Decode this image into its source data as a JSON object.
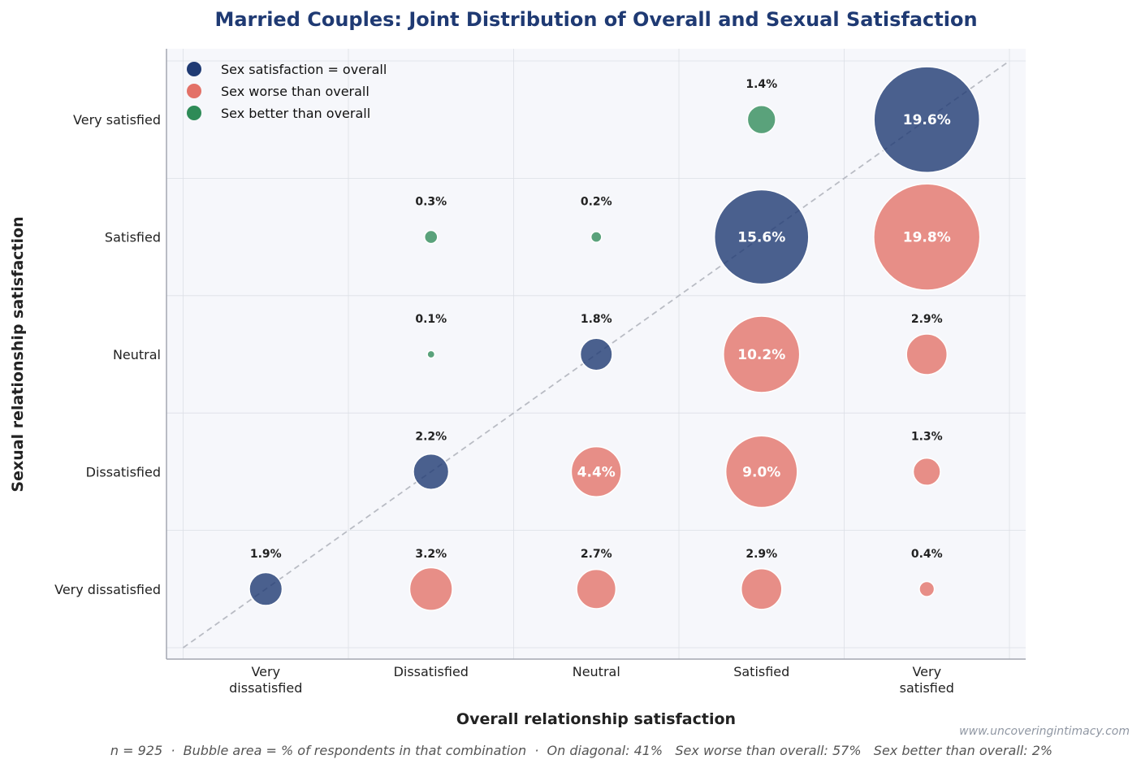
{
  "colors": {
    "equal": "#1f3a73",
    "worse": "#e37167",
    "better": "#2e8b57",
    "title": "#1f3a73",
    "plot_bg": "#f6f7fb",
    "grid": "#dcdfe6",
    "diagonal": "#b9bcc4"
  },
  "chart_data": {
    "type": "scatter",
    "title": "Married Couples: Joint Distribution of Overall and Sexual Satisfaction",
    "xlabel": "Overall relationship satisfaction",
    "ylabel": "Sexual relationship satisfaction",
    "x_categories": [
      "Very dissatisfied",
      "Dissatisfied",
      "Neutral",
      "Satisfied",
      "Very satisfied"
    ],
    "x_tick_labels": [
      [
        "Very",
        "dissatisfied"
      ],
      [
        "Dissatisfied"
      ],
      [
        "Neutral"
      ],
      [
        "Satisfied"
      ],
      [
        "Very",
        "satisfied"
      ]
    ],
    "y_categories": [
      "Very dissatisfied",
      "Dissatisfied",
      "Neutral",
      "Satisfied",
      "Very satisfied"
    ],
    "grid": true,
    "legend_position": "top-left",
    "legend": [
      {
        "key": "equal",
        "label": "Sex satisfaction = overall"
      },
      {
        "key": "worse",
        "label": "Sex worse than overall"
      },
      {
        "key": "better",
        "label": "Sex better than overall"
      }
    ],
    "points": [
      {
        "x": "Very dissatisfied",
        "y": "Very dissatisfied",
        "value": 1.9,
        "label": "1.9%",
        "group": "equal"
      },
      {
        "x": "Dissatisfied",
        "y": "Very dissatisfied",
        "value": 3.2,
        "label": "3.2%",
        "group": "worse"
      },
      {
        "x": "Neutral",
        "y": "Very dissatisfied",
        "value": 2.7,
        "label": "2.7%",
        "group": "worse"
      },
      {
        "x": "Satisfied",
        "y": "Very dissatisfied",
        "value": 2.9,
        "label": "2.9%",
        "group": "worse"
      },
      {
        "x": "Very satisfied",
        "y": "Very dissatisfied",
        "value": 0.4,
        "label": "0.4%",
        "group": "worse"
      },
      {
        "x": "Dissatisfied",
        "y": "Dissatisfied",
        "value": 2.2,
        "label": "2.2%",
        "group": "equal"
      },
      {
        "x": "Neutral",
        "y": "Dissatisfied",
        "value": 4.4,
        "label": "4.4%",
        "group": "worse"
      },
      {
        "x": "Satisfied",
        "y": "Dissatisfied",
        "value": 9.0,
        "label": "9.0%",
        "group": "worse"
      },
      {
        "x": "Very satisfied",
        "y": "Dissatisfied",
        "value": 1.3,
        "label": "1.3%",
        "group": "worse"
      },
      {
        "x": "Dissatisfied",
        "y": "Neutral",
        "value": 0.1,
        "label": "0.1%",
        "group": "better"
      },
      {
        "x": "Neutral",
        "y": "Neutral",
        "value": 1.8,
        "label": "1.8%",
        "group": "equal"
      },
      {
        "x": "Satisfied",
        "y": "Neutral",
        "value": 10.2,
        "label": "10.2%",
        "group": "worse"
      },
      {
        "x": "Very satisfied",
        "y": "Neutral",
        "value": 2.9,
        "label": "2.9%",
        "group": "worse"
      },
      {
        "x": "Dissatisfied",
        "y": "Satisfied",
        "value": 0.3,
        "label": "0.3%",
        "group": "better"
      },
      {
        "x": "Neutral",
        "y": "Satisfied",
        "value": 0.2,
        "label": "0.2%",
        "group": "better"
      },
      {
        "x": "Satisfied",
        "y": "Satisfied",
        "value": 15.6,
        "label": "15.6%",
        "group": "equal"
      },
      {
        "x": "Very satisfied",
        "y": "Satisfied",
        "value": 19.8,
        "label": "19.8%",
        "group": "worse"
      },
      {
        "x": "Satisfied",
        "y": "Very satisfied",
        "value": 1.4,
        "label": "1.4%",
        "group": "better"
      },
      {
        "x": "Very satisfied",
        "y": "Very satisfied",
        "value": 19.6,
        "label": "19.6%",
        "group": "equal"
      }
    ]
  },
  "footer": {
    "summary": "n = 925  ·  Bubble area = % of respondents in that combination  ·  On diagonal: 41%   Sex worse than overall: 57%   Sex better than overall: 2%",
    "source": "www.uncoveringintimacy.com"
  }
}
